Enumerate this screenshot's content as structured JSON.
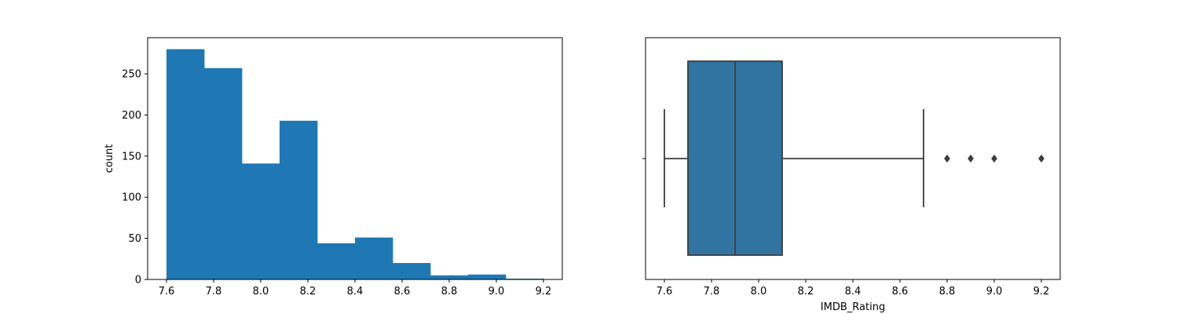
{
  "chart_data": [
    {
      "type": "bar",
      "subtype": "histogram",
      "xlabel": "",
      "ylabel": "count",
      "xlim": [
        7.52,
        9.28
      ],
      "ylim": [
        0,
        294
      ],
      "bin_edges": [
        7.6,
        7.76,
        7.92,
        8.08,
        8.24,
        8.4,
        8.56,
        8.72,
        8.88,
        9.04,
        9.2
      ],
      "values": [
        280,
        257,
        141,
        193,
        44,
        51,
        20,
        5,
        6,
        1
      ],
      "color": "#1f77b4",
      "xticks": [
        7.6,
        7.8,
        8.0,
        8.2,
        8.4,
        8.6,
        8.8,
        9.0,
        9.2
      ],
      "xtick_labels": [
        "7.6",
        "7.8",
        "8.0",
        "8.2",
        "8.4",
        "8.6",
        "8.8",
        "9.0",
        "9.2"
      ],
      "yticks": [
        0,
        50,
        100,
        150,
        200,
        250
      ],
      "ytick_labels": [
        "0",
        "50",
        "100",
        "150",
        "200",
        "250"
      ]
    },
    {
      "type": "box",
      "orientation": "horizontal",
      "xlabel": "IMDB_Rating",
      "ylabel": "",
      "xlim": [
        7.52,
        9.28
      ],
      "whisker_low": 7.6,
      "q1": 7.7,
      "median": 7.9,
      "q3": 8.1,
      "whisker_high": 8.7,
      "outliers": [
        8.8,
        8.9,
        9.0,
        9.2
      ],
      "box_color": "#3274a1",
      "line_color": "#3d3d3d",
      "xticks": [
        7.6,
        7.8,
        8.0,
        8.2,
        8.4,
        8.6,
        8.8,
        9.0,
        9.2
      ],
      "xtick_labels": [
        "7.6",
        "7.8",
        "8.0",
        "8.2",
        "8.4",
        "8.6",
        "8.8",
        "9.0",
        "9.2"
      ]
    }
  ]
}
